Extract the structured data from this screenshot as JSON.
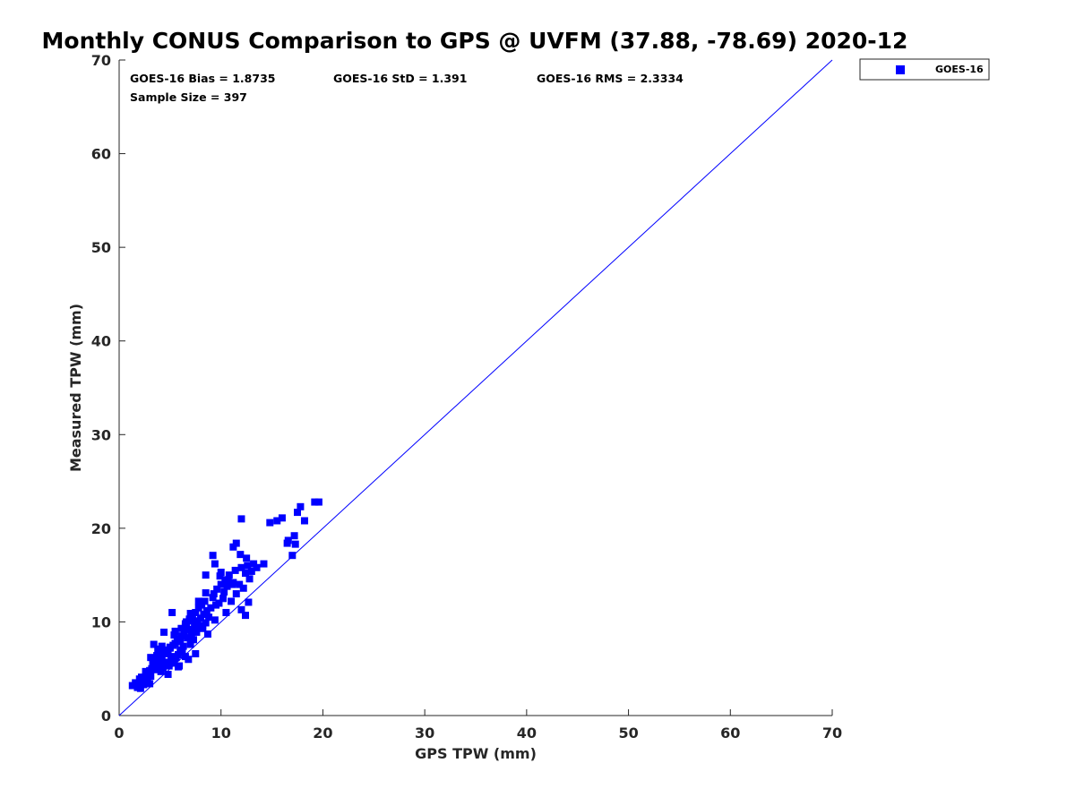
{
  "chart_data": {
    "type": "scatter",
    "title": "Monthly CONUS Comparison to GPS @ UVFM (37.88, -78.69) 2020-12",
    "xlabel": "GPS TPW (mm)",
    "ylabel": "Measured TPW (mm)",
    "xlim": [
      0,
      70
    ],
    "ylim": [
      0,
      70
    ],
    "xticks": [
      "0",
      "10",
      "20",
      "30",
      "40",
      "50",
      "60",
      "70"
    ],
    "yticks": [
      "0",
      "10",
      "20",
      "30",
      "40",
      "50",
      "60",
      "70"
    ],
    "grid": false,
    "legend_position": "outside-top-right",
    "reference_line": {
      "name": "1:1",
      "x": [
        0,
        70
      ],
      "y": [
        0,
        70
      ],
      "color": "#0000ff"
    },
    "stats": {
      "bias": "GOES-16 Bias = 1.8735",
      "std": "GOES-16 StD = 1.391",
      "rms": "GOES-16 RMS = 2.3334",
      "sample": "Sample Size = 397"
    },
    "series": [
      {
        "name": "GOES-16",
        "color": "#0000ff",
        "marker": "square",
        "x": [
          1.3,
          1.6,
          1.8,
          2.0,
          2.1,
          2.3,
          2.2,
          2.5,
          2.6,
          2.8,
          2.4,
          2.9,
          3.0,
          3.1,
          3.2,
          3.3,
          2.7,
          3.4,
          3.5,
          3.6,
          3.3,
          3.8,
          3.9,
          4.0,
          4.1,
          4.2,
          3.7,
          4.3,
          4.4,
          4.5,
          4.6,
          4.7,
          4.8,
          4.0,
          4.9,
          5.0,
          5.1,
          5.2,
          5.3,
          4.6,
          5.4,
          5.5,
          5.6,
          5.7,
          5.0,
          5.8,
          5.9,
          6.0,
          6.1,
          6.2,
          5.5,
          6.3,
          6.4,
          6.5,
          6.6,
          6.0,
          6.7,
          6.8,
          6.9,
          7.0,
          7.1,
          6.5,
          7.2,
          7.3,
          7.4,
          7.5,
          7.6,
          7.7,
          7.8,
          7.9,
          8.0,
          8.1,
          8.2,
          8.3,
          8.4,
          8.5,
          8.6,
          8.7,
          8.8,
          9.0,
          9.2,
          9.3,
          9.4,
          9.5,
          9.6,
          9.8,
          10.0,
          10.2,
          10.3,
          10.4,
          10.5,
          10.6,
          10.8,
          11.0,
          11.2,
          11.4,
          11.5,
          11.8,
          12.0,
          12.2,
          12.4,
          12.6,
          12.8,
          13.0,
          13.2,
          13.5,
          14.2,
          11.2,
          11.5,
          11.9,
          12.5,
          12.0,
          9.2,
          9.4,
          10.0,
          8.5,
          6.5,
          5.8,
          4.8,
          3.4,
          3.0,
          4.0,
          7.5,
          8.2,
          15.5,
          16.0,
          16.5,
          17.0,
          17.2,
          17.3,
          17.5,
          17.8,
          18.2,
          19.2,
          19.6,
          12.0,
          12.4,
          14.8,
          16.6,
          12.7,
          7.8,
          8.5,
          5.2,
          4.4,
          3.8,
          6.6,
          7.0,
          2.0,
          2.6,
          3.1,
          4.2,
          5.4,
          6.1,
          7.3,
          5.9,
          6.8,
          9.9,
          10.7,
          11.1
        ],
        "y": [
          3.2,
          3.5,
          3.0,
          3.4,
          2.9,
          3.8,
          4.1,
          3.6,
          4.3,
          4.0,
          3.3,
          4.5,
          4.8,
          4.2,
          5.0,
          5.3,
          4.6,
          5.6,
          4.9,
          5.8,
          6.0,
          5.2,
          5.5,
          6.2,
          4.7,
          5.9,
          6.4,
          5.1,
          6.6,
          5.4,
          6.8,
          5.7,
          7.0,
          6.1,
          5.3,
          7.2,
          6.3,
          5.6,
          7.5,
          6.7,
          5.9,
          7.7,
          6.2,
          8.0,
          7.3,
          6.5,
          8.2,
          7.0,
          8.5,
          6.8,
          9.0,
          7.4,
          8.8,
          9.5,
          10.0,
          7.9,
          8.3,
          9.2,
          10.3,
          7.6,
          8.7,
          9.8,
          10.6,
          8.1,
          9.4,
          11.0,
          8.9,
          10.1,
          11.5,
          9.6,
          10.4,
          11.8,
          9.3,
          10.8,
          12.2,
          9.9,
          11.2,
          8.7,
          10.5,
          11.5,
          12.6,
          13.0,
          10.2,
          11.8,
          13.5,
          12.0,
          14.0,
          12.5,
          13.2,
          14.5,
          11.0,
          13.8,
          15.0,
          12.2,
          14.2,
          15.5,
          13.0,
          14.0,
          15.8,
          13.6,
          15.2,
          16.0,
          14.6,
          15.4,
          16.2,
          15.8,
          16.2,
          18.0,
          18.4,
          17.2,
          16.8,
          21.0,
          17.1,
          16.2,
          15.3,
          15.0,
          6.3,
          5.2,
          4.4,
          7.6,
          3.4,
          7.0,
          6.6,
          9.5,
          20.8,
          21.1,
          18.4,
          17.1,
          19.2,
          18.3,
          21.7,
          22.3,
          20.8,
          22.8,
          22.8,
          11.3,
          10.7,
          20.6,
          18.7,
          12.1,
          12.2,
          13.1,
          11.0,
          8.9,
          7.1,
          9.6,
          10.9,
          3.9,
          4.7,
          6.2,
          7.4,
          8.6,
          9.3,
          10.1,
          5.3,
          6.0,
          14.9,
          14.4,
          14.0
        ]
      }
    ]
  }
}
